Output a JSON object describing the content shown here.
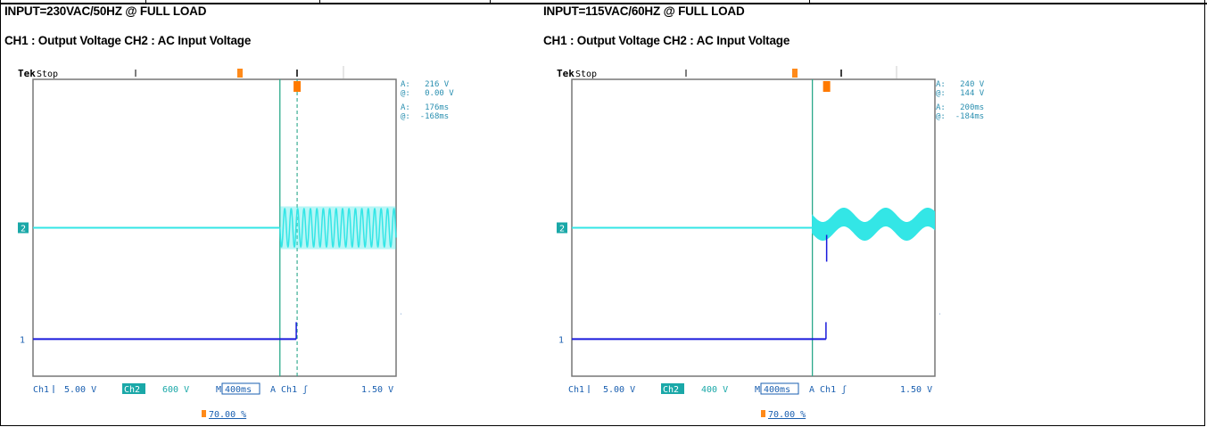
{
  "panels": [
    {
      "title": "INPUT=230VAC/50HZ @ FULL LOAD",
      "subtitle": "CH1 : Output Voltage CH2 : AC Input Voltage",
      "scope": {
        "brand": "Tek",
        "state": "Stop",
        "readout_cursor1_label": "A:",
        "readout_cursor1_value": "216 V",
        "readout_cursor2_label": "@:",
        "readout_cursor2_value": "0.00 V",
        "readout_time1_label": "A:",
        "readout_time1_value": "176ms",
        "readout_time2_label": "@:",
        "readout_time2_value": "-168ms",
        "ch1_label": "Ch1",
        "ch1_scale": "5.00 V",
        "ch2_label": "Ch2",
        "ch2_scale": "600 V",
        "timebase_label": "M",
        "timebase": "400ms",
        "trigger_label": "A  Ch1  ʃ",
        "trigger_level": "1.50 V",
        "trigger_pos": "70.00 %"
      }
    },
    {
      "title": "INPUT=115VAC/60HZ @ FULL LOAD",
      "subtitle": "CH1 : Output Voltage CH2 : AC Input Voltage",
      "scope": {
        "brand": "Tek",
        "state": "Stop",
        "readout_cursor1_label": "A:",
        "readout_cursor1_value": "240 V",
        "readout_cursor2_label": "@:",
        "readout_cursor2_value": "144 V",
        "readout_time1_label": "A:",
        "readout_time1_value": "200ms",
        "readout_time2_label": "@:",
        "readout_time2_value": "-184ms",
        "ch1_label": "Ch1",
        "ch1_scale": "5.00 V",
        "ch2_label": "Ch2",
        "ch2_scale": "400 V",
        "timebase_label": "M",
        "timebase": "400ms",
        "trigger_label": "A  Ch1  ʃ",
        "trigger_level": "1.50 V",
        "trigger_pos": "70.00 %"
      }
    }
  ],
  "chart_data": [
    {
      "type": "line",
      "title": "INPUT=230VAC/50HZ @ FULL LOAD",
      "series": [
        {
          "name": "CH1 : Output Voltage",
          "color": "#1a1adc",
          "x": [
            0,
            2.9,
            2.92,
            2.95
          ],
          "y": [
            0,
            0,
            0.2,
            0.2
          ]
        },
        {
          "name": "CH2 : AC Input Voltage",
          "color": "#33e6e6",
          "x": [
            0,
            2.72,
            4.0
          ],
          "y": [
            0,
            230,
            230
          ],
          "frequency_hz": 50
        }
      ],
      "xlabel": "",
      "ylabel": "",
      "x_unit": "ms",
      "time_per_div_ms": 400,
      "divisions": 10,
      "cursors_ms": [
        176,
        -168
      ],
      "colors": {
        "ch1": "#1a1adc",
        "ch2": "#33e6e6",
        "cursor": "#2aa88a",
        "trigger": "#ff7a00"
      }
    },
    {
      "type": "line",
      "title": "INPUT=115VAC/60HZ @ FULL LOAD",
      "series": [
        {
          "name": "CH1 : Output Voltage",
          "color": "#1a1adc",
          "x": [
            0,
            2.8,
            2.82,
            2.85
          ],
          "y": [
            0,
            0,
            0.2,
            0.2
          ]
        },
        {
          "name": "CH2 : AC Input Voltage",
          "color": "#33e6e6",
          "x": [
            0,
            2.65,
            4.0
          ],
          "y": [
            0,
            115,
            115
          ],
          "frequency_hz": 60
        }
      ],
      "xlabel": "",
      "ylabel": "",
      "x_unit": "ms",
      "time_per_div_ms": 400,
      "divisions": 10,
      "cursors_ms": [
        200,
        -184
      ],
      "colors": {
        "ch1": "#1a1adc",
        "ch2": "#33e6e6",
        "cursor": "#2aa88a",
        "trigger": "#ff7a00"
      }
    }
  ]
}
